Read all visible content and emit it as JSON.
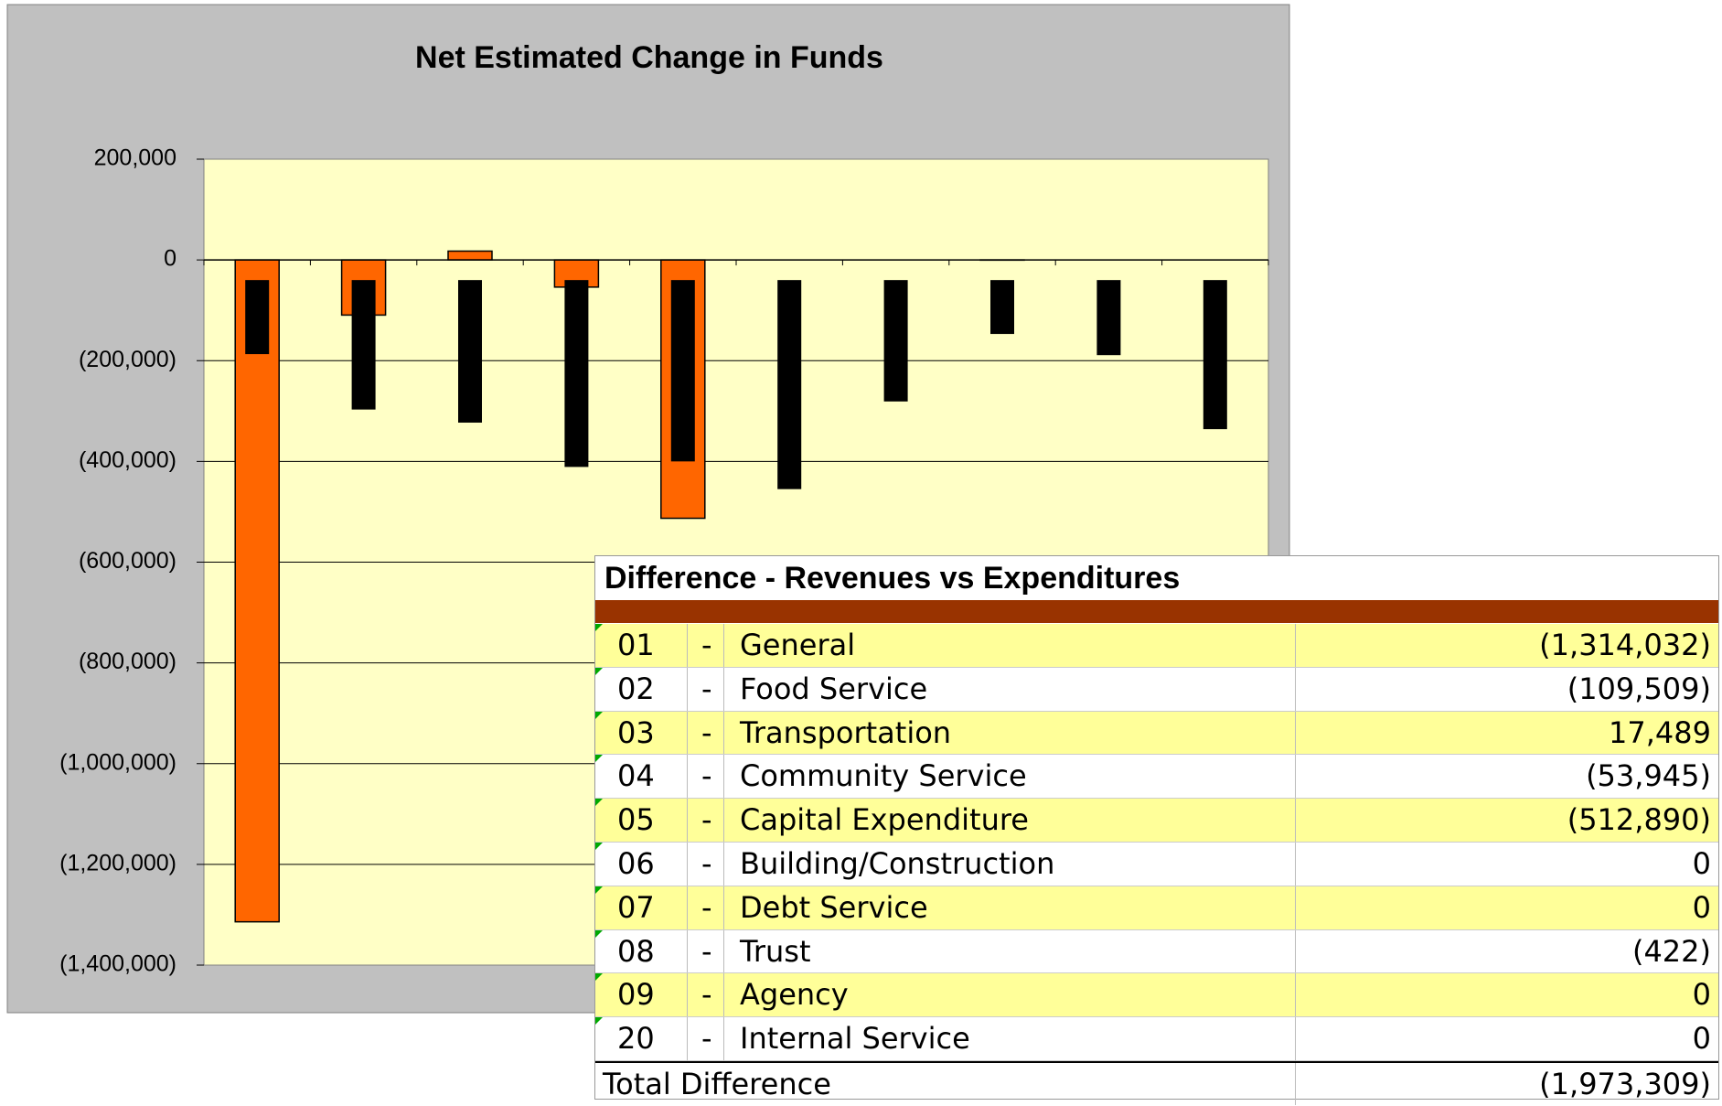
{
  "chart_data": {
    "type": "bar",
    "title": "Net Estimated Change in Funds",
    "categories": [
      null,
      null,
      null,
      null,
      null,
      null,
      null,
      null,
      null,
      null
    ],
    "series": [
      {
        "color": "#ff6600",
        "values": [
          -1314032,
          -109509,
          17489,
          -53945,
          -512890,
          0,
          0,
          -422,
          0,
          0
        ]
      },
      {
        "color": "#000000",
        "high": [
          -40000,
          -40000,
          -40000,
          -40000,
          -40000,
          -40000,
          -40000,
          -40000,
          -40000,
          -40000
        ],
        "low": [
          -187000,
          -297000,
          -323000,
          -411000,
          -400000,
          -455000,
          -281000,
          -147000,
          -189000,
          -336000
        ]
      }
    ],
    "ylim": [
      -1400000,
      200000
    ],
    "yticks": [
      {
        "value": 200000,
        "label": "200,000"
      },
      0,
      {
        "value": -200000,
        "label": "(200,000)"
      },
      {
        "value": -400000,
        "label": "(400,000)"
      },
      {
        "value": -600000,
        "label": "(600,000)"
      },
      {
        "value": -800000,
        "label": "(800,000)"
      },
      {
        "value": -1000000,
        "label": "(1,000,000)"
      },
      {
        "value": -1200000,
        "label": "(1,200,000)"
      },
      {
        "value": -1400000,
        "label": "(1,400,000)"
      }
    ],
    "grid": true
  },
  "table": {
    "title": "Difference - Revenues vs Expenditures",
    "rows": [
      [
        "01",
        "-",
        "General",
        "(1,314,032)"
      ],
      [
        "02",
        "-",
        "Food Service",
        "(109,509)"
      ],
      [
        "03",
        "-",
        "Transportation",
        "17,489"
      ],
      [
        "04",
        "-",
        "Community Service",
        "(53,945)"
      ],
      [
        "05",
        "-",
        "Capital Expenditure",
        "(512,890)"
      ],
      [
        "06",
        "-",
        "Building/Construction",
        "0"
      ],
      [
        "07",
        "-",
        "Debt Service",
        "0"
      ],
      [
        "08",
        "-",
        "Trust",
        "(422)"
      ],
      [
        "09",
        "-",
        "Agency",
        "0"
      ],
      [
        "20",
        "-",
        "Internal Service",
        "0"
      ]
    ],
    "total": [
      "Total Difference",
      "(1,973,309)"
    ]
  }
}
